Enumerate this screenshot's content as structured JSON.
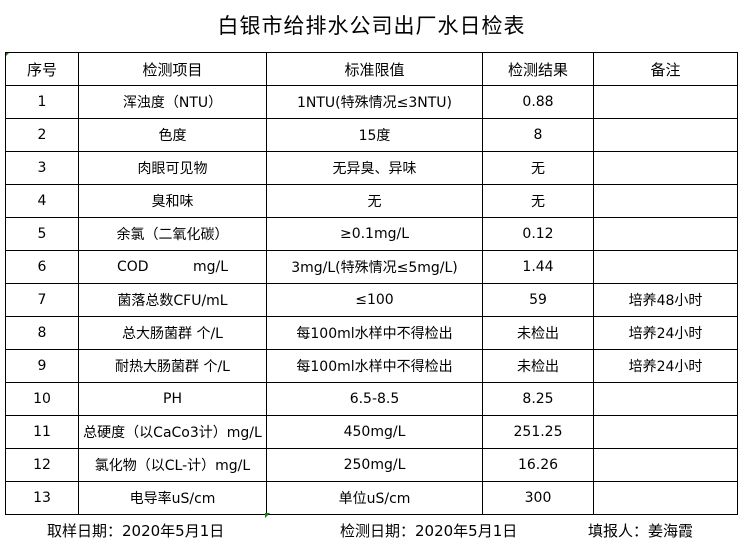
{
  "title": "白银市给排水公司出厂水日检表",
  "headers": [
    "序号",
    "检测项目",
    "标准限值",
    "检测结果",
    "备注"
  ],
  "rows": [
    [
      "1",
      "浑浊度（NTU）",
      "1NTU(特殊情况≤3NTU)",
      "0.88",
      ""
    ],
    [
      "2",
      "色度",
      "15度",
      "8",
      ""
    ],
    [
      "3",
      "肉眼可见物",
      "无异臭、异味",
      "无",
      ""
    ],
    [
      "4",
      "臭和味",
      "无",
      "无",
      ""
    ],
    [
      "5",
      "余氯（二氧化碳）",
      "≥0.1mg/L",
      "0.12",
      ""
    ],
    [
      "6",
      "COD          mg/L",
      "3mg/L(特殊情况≤5mg/L)",
      "1.44",
      ""
    ],
    [
      "7",
      "菌落总数CFU/mL",
      "≤100",
      "59",
      "培养48小时"
    ],
    [
      "8",
      "总大肠菌群 个/L",
      "每100ml水样中不得检出",
      "未检出",
      "培养24小时"
    ],
    [
      "9",
      "耐热大肠菌群 个/L",
      "每100ml水样中不得检出",
      "未检出",
      "培养24小时"
    ],
    [
      "10",
      "PH",
      "6.5-8.5",
      "8.25",
      ""
    ],
    [
      "11",
      "总硬度（以CaCo3计）mg/L",
      "450mg/L",
      "251.25",
      ""
    ],
    [
      "12",
      "氯化物（以CL-计）mg/L",
      "250mg/L",
      "16.26",
      ""
    ],
    [
      "13",
      "电导率uS/cm",
      "单位uS/cm",
      "300",
      ""
    ]
  ],
  "footer": {
    "sampling_date": "取样日期：2020年5月1日",
    "test_date": "检测日期：2020年5月1日",
    "reporter": "填报人：姜海霞"
  }
}
